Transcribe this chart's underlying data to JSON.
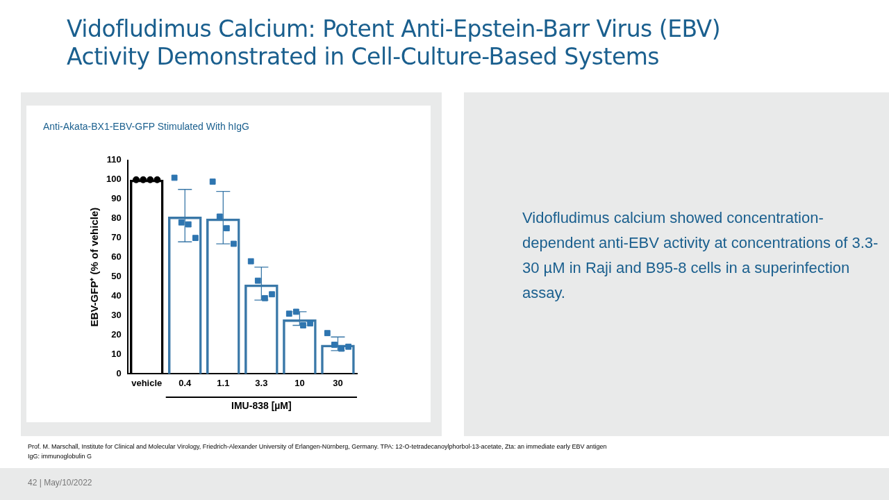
{
  "chart_data": {
    "type": "bar",
    "title": "Vidofludimus Calcium: Potent Anti-Epstein-Barr Virus (EBV) Activity Demonstrated in Cell-Culture-Based Systems",
    "subtitle": "Anti-Akata-BX1-EBV-GFP Stimulated With hIgG",
    "categories": [
      "vehicle",
      "0.4",
      "1.1",
      "3.3",
      "10",
      "30"
    ],
    "values": [
      100,
      81,
      80,
      46,
      28,
      15
    ],
    "colors": [
      "#000000",
      "#3a78a8",
      "#3a78a8",
      "#3a78a8",
      "#3a78a8",
      "#3a78a8"
    ],
    "errors": [
      null,
      [
        68,
        95
      ],
      [
        67,
        94
      ],
      [
        38,
        55
      ],
      [
        25,
        32
      ],
      [
        12,
        19
      ]
    ],
    "series": [
      {
        "type": "scatter",
        "marker": "circle",
        "color": "#000000",
        "x": [
          "vehicle",
          "vehicle",
          "vehicle",
          "vehicle"
        ],
        "values": [
          100,
          100,
          100,
          100
        ]
      },
      {
        "type": "scatter",
        "marker": "square",
        "color": "#2e75b0",
        "x": [
          "0.4",
          "0.4",
          "0.4",
          "0.4",
          "1.1",
          "1.1",
          "1.1",
          "1.1",
          "3.3",
          "3.3",
          "3.3",
          "3.3",
          "10",
          "10",
          "10",
          "10",
          "30",
          "30",
          "30",
          "30"
        ],
        "values": [
          101,
          78,
          77,
          70,
          99,
          81,
          75,
          67,
          58,
          48,
          39,
          41,
          31,
          32,
          25,
          26,
          21,
          15,
          13,
          14
        ]
      }
    ],
    "xlabel": "IMU-838 [µM]",
    "ylabel": "EBV-GFP⁺ (% of vehicle)",
    "ylim": [
      0,
      110
    ],
    "yticks": [
      0,
      10,
      20,
      30,
      40,
      50,
      60,
      70,
      80,
      90,
      100,
      110
    ],
    "grid": false,
    "legend": false,
    "annotations": [
      "Vidofludimus calcium showed concentration-dependent anti-EBV activity at concentrations of 3.3-30 µM in Raji and B95-8 cells in a superinfection assay.",
      "Prof. M. Marschall, Institute for Clinical and Molecular Virology, Friedrich-Alexander University of Erlangen-Nürnberg, Germany. TPA: 12-O-tetradecanoylphorbol-13-acetate, Zta: an immediate early EBV antigen",
      "IgG: immunoglobulin G",
      "42  |  May/10/2022"
    ]
  }
}
